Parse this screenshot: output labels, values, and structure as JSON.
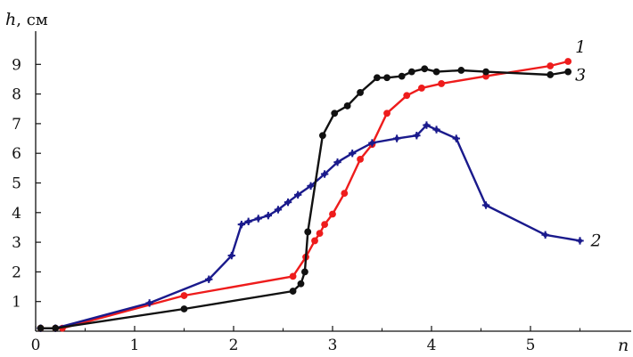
{
  "chart_data": {
    "type": "line",
    "ylabel": "h",
    "yunit": ", см",
    "xlabel": "n",
    "xlim": [
      0,
      6
    ],
    "ylim": [
      0,
      10
    ],
    "xticks": [
      0,
      1,
      2,
      3,
      4,
      5
    ],
    "xtick_labels": [
      "0",
      "1",
      "2",
      "3",
      "4",
      "5"
    ],
    "yticks": [
      1,
      2,
      3,
      4,
      5,
      6,
      7,
      8,
      9
    ],
    "ytick_labels": [
      "1",
      "2",
      "3",
      "4",
      "5",
      "6",
      "7",
      "8",
      "9"
    ],
    "grid": false,
    "series": [
      {
        "name": "1",
        "color": "#ee1c1c",
        "x": [
          0.05,
          0.2,
          0.27,
          1.5,
          2.6,
          2.73,
          2.82,
          2.87,
          2.92,
          3.0,
          3.12,
          3.28,
          3.4,
          3.55,
          3.75,
          3.9,
          4.1,
          4.55,
          5.2,
          5.38
        ],
        "y": [
          0.1,
          0.1,
          0.1,
          1.2,
          1.85,
          2.5,
          3.05,
          3.3,
          3.6,
          3.95,
          4.65,
          5.8,
          6.3,
          7.35,
          7.95,
          8.2,
          8.35,
          8.6,
          8.95,
          9.1
        ]
      },
      {
        "name": "2",
        "color": "#1a1a8c",
        "x": [
          0.05,
          0.2,
          1.15,
          1.75,
          1.98,
          2.08,
          2.15,
          2.25,
          2.35,
          2.45,
          2.55,
          2.65,
          2.78,
          2.92,
          3.05,
          3.2,
          3.4,
          3.65,
          3.85,
          3.95,
          4.05,
          4.25,
          4.55,
          5.15,
          5.5
        ],
        "y": [
          0.1,
          0.1,
          0.95,
          1.75,
          2.55,
          3.6,
          3.7,
          3.8,
          3.9,
          4.1,
          4.35,
          4.6,
          4.9,
          5.3,
          5.7,
          6.0,
          6.35,
          6.5,
          6.6,
          6.95,
          6.8,
          6.5,
          4.25,
          3.25,
          3.05
        ]
      },
      {
        "name": "3",
        "color": "#111111",
        "x": [
          0.05,
          0.2,
          1.5,
          2.6,
          2.68,
          2.72,
          2.75,
          2.9,
          3.02,
          3.15,
          3.28,
          3.45,
          3.55,
          3.7,
          3.8,
          3.93,
          4.05,
          4.3,
          4.55,
          5.2,
          5.38
        ],
        "y": [
          0.1,
          0.1,
          0.75,
          1.35,
          1.6,
          2.0,
          3.35,
          6.6,
          7.35,
          7.6,
          8.05,
          8.55,
          8.55,
          8.6,
          8.75,
          8.85,
          8.75,
          8.8,
          8.75,
          8.65,
          8.75
        ]
      }
    ]
  }
}
